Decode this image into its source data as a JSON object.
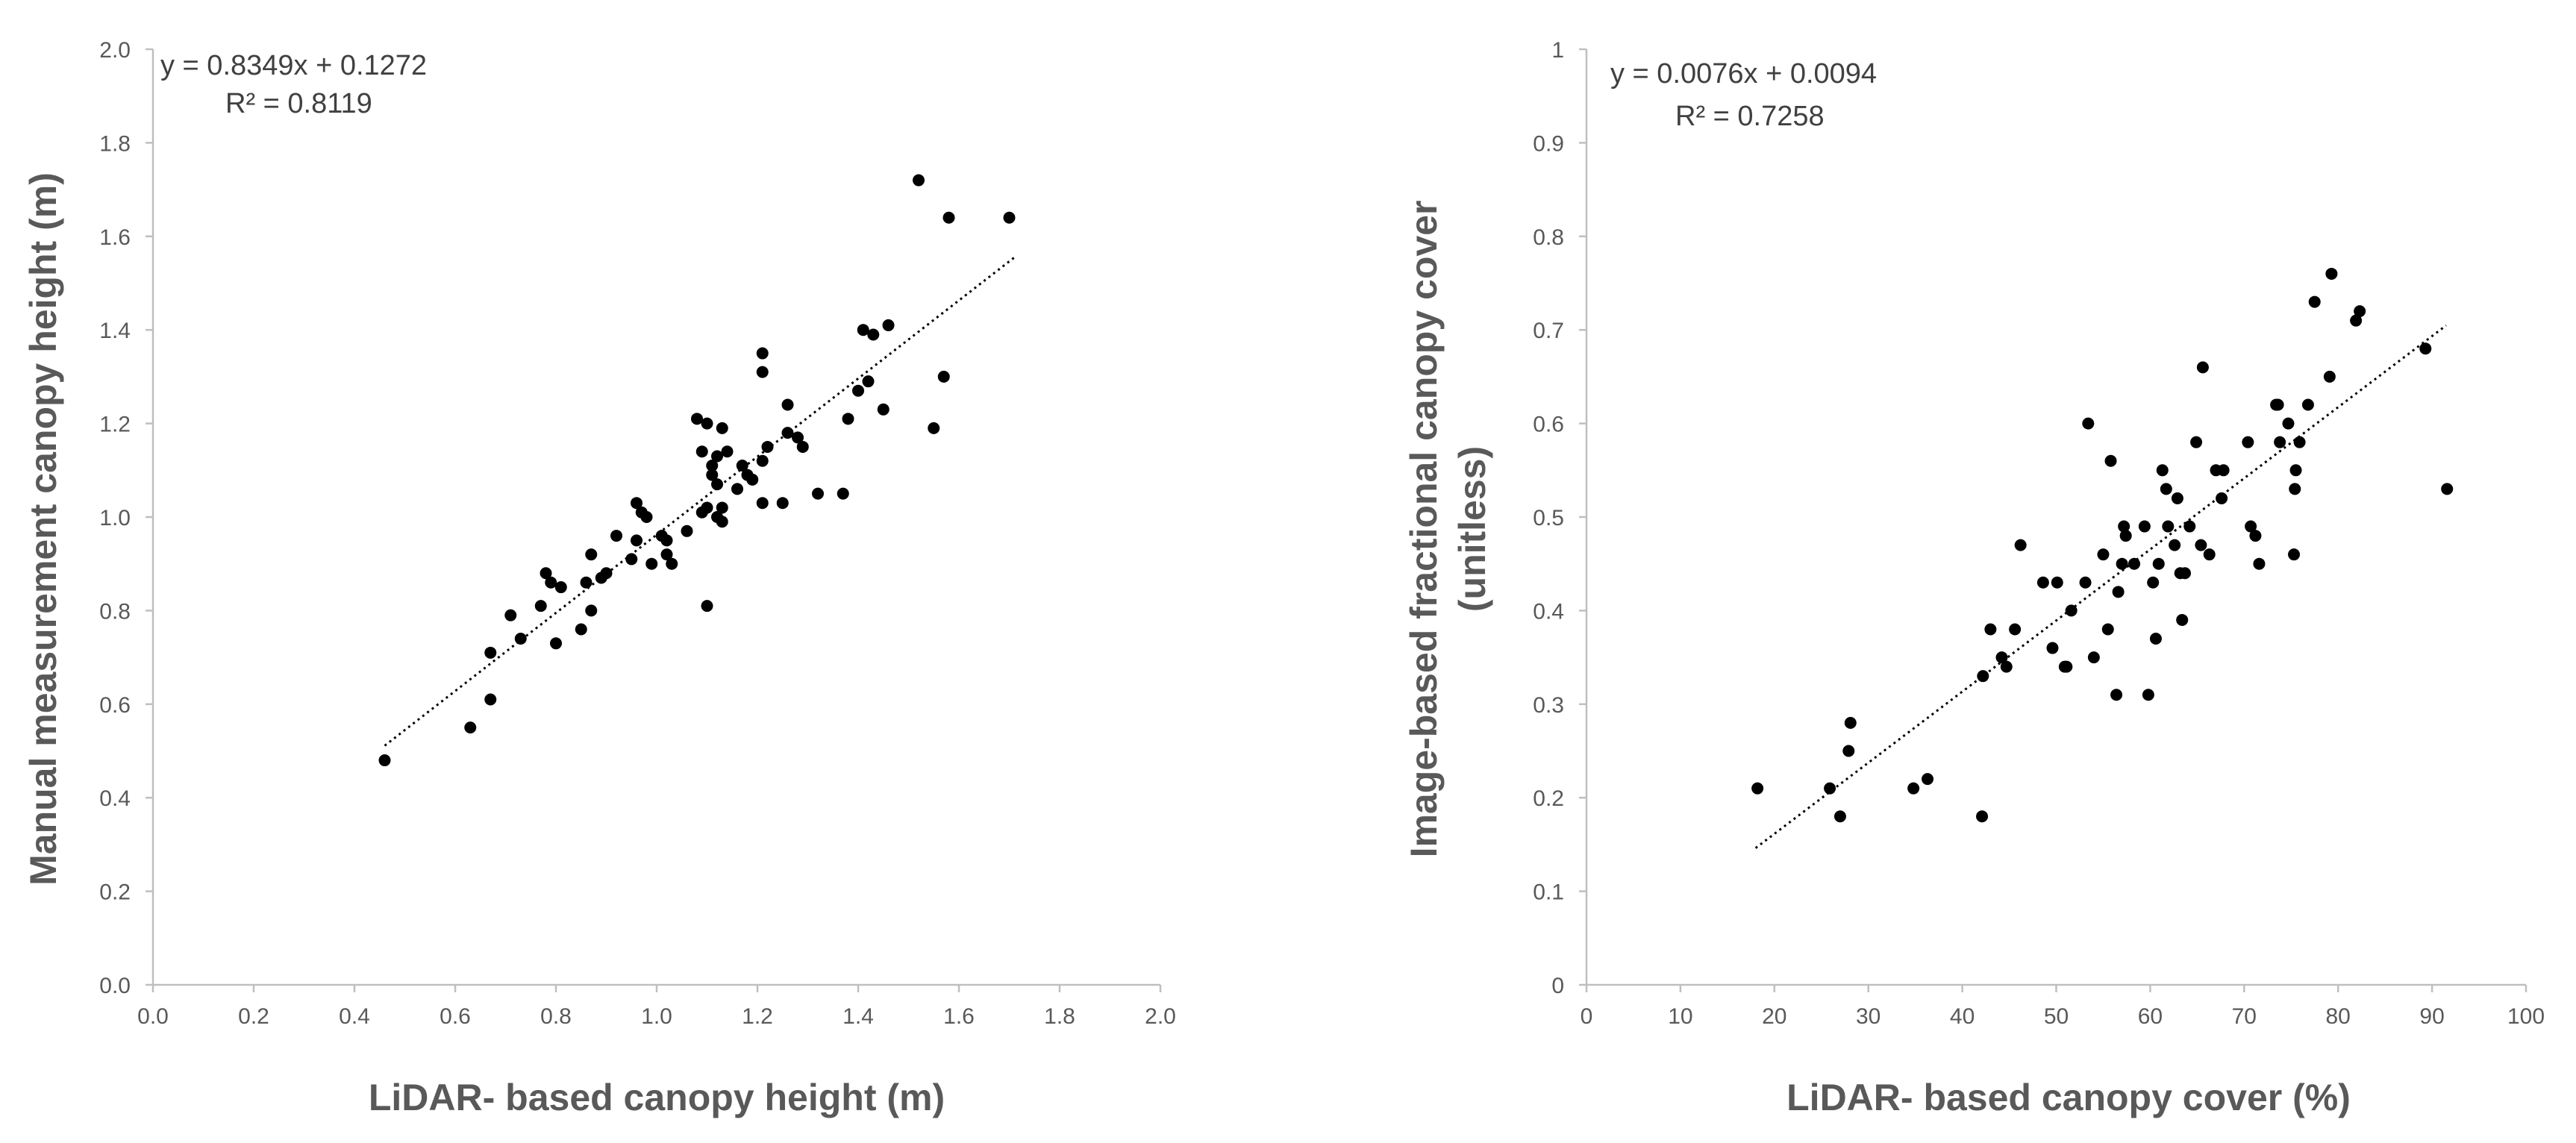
{
  "chart_data": [
    {
      "type": "scatter",
      "title": "",
      "xlabel": "LiDAR- based canopy height (m)",
      "ylabel": "Manual measurement canopy height (m)",
      "xlim": [
        0,
        2
      ],
      "ylim": [
        0,
        2
      ],
      "x_ticks": [
        "0.0",
        "0.2",
        "0.4",
        "0.6",
        "0.8",
        "1.0",
        "1.2",
        "1.4",
        "1.6",
        "1.8",
        "2.0"
      ],
      "y_ticks": [
        "0.0",
        "0.2",
        "0.4",
        "0.6",
        "0.8",
        "1.0",
        "1.2",
        "1.4",
        "1.6",
        "1.8",
        "2.0"
      ],
      "x_tick_values": [
        0,
        0.2,
        0.4,
        0.6,
        0.8,
        1.0,
        1.2,
        1.4,
        1.6,
        1.8,
        2.0
      ],
      "y_tick_values": [
        0,
        0.2,
        0.4,
        0.6,
        0.8,
        1.0,
        1.2,
        1.4,
        1.6,
        1.8,
        2.0
      ],
      "equation": "y = 0.8349x + 0.1272",
      "r2": "R² = 0.8119",
      "trendline": {
        "slope": 0.8349,
        "intercept": 0.1272,
        "x_range": [
          0.46,
          1.71
        ]
      },
      "points": [
        [
          0.46,
          0.48
        ],
        [
          0.63,
          0.55
        ],
        [
          0.67,
          0.61
        ],
        [
          0.67,
          0.71
        ],
        [
          0.71,
          0.79
        ],
        [
          0.73,
          0.74
        ],
        [
          0.77,
          0.81
        ],
        [
          0.78,
          0.88
        ],
        [
          0.79,
          0.86
        ],
        [
          0.8,
          0.73
        ],
        [
          0.81,
          0.85
        ],
        [
          0.85,
          0.76
        ],
        [
          0.86,
          0.86
        ],
        [
          0.87,
          0.92
        ],
        [
          0.87,
          0.8
        ],
        [
          0.89,
          0.87
        ],
        [
          0.9,
          0.88
        ],
        [
          0.92,
          0.96
        ],
        [
          0.95,
          0.91
        ],
        [
          0.96,
          0.95
        ],
        [
          0.96,
          1.03
        ],
        [
          0.97,
          1.01
        ],
        [
          0.98,
          1.0
        ],
        [
          0.99,
          0.9
        ],
        [
          1.01,
          0.96
        ],
        [
          1.02,
          0.95
        ],
        [
          1.02,
          0.92
        ],
        [
          1.03,
          0.9
        ],
        [
          1.06,
          0.97
        ],
        [
          1.08,
          1.21
        ],
        [
          1.09,
          1.01
        ],
        [
          1.09,
          1.14
        ],
        [
          1.1,
          1.2
        ],
        [
          1.1,
          1.02
        ],
        [
          1.1,
          0.81
        ],
        [
          1.11,
          1.09
        ],
        [
          1.11,
          1.11
        ],
        [
          1.12,
          1.07
        ],
        [
          1.12,
          1.13
        ],
        [
          1.12,
          1.0
        ],
        [
          1.13,
          0.99
        ],
        [
          1.13,
          1.02
        ],
        [
          1.13,
          1.19
        ],
        [
          1.14,
          1.14
        ],
        [
          1.16,
          1.06
        ],
        [
          1.17,
          1.11
        ],
        [
          1.18,
          1.09
        ],
        [
          1.19,
          1.08
        ],
        [
          1.21,
          1.31
        ],
        [
          1.21,
          1.35
        ],
        [
          1.21,
          1.12
        ],
        [
          1.21,
          1.03
        ],
        [
          1.22,
          1.15
        ],
        [
          1.25,
          1.03
        ],
        [
          1.26,
          1.18
        ],
        [
          1.26,
          1.24
        ],
        [
          1.28,
          1.17
        ],
        [
          1.29,
          1.15
        ],
        [
          1.32,
          1.05
        ],
        [
          1.37,
          1.05
        ],
        [
          1.38,
          1.21
        ],
        [
          1.4,
          1.27
        ],
        [
          1.41,
          1.4
        ],
        [
          1.42,
          1.29
        ],
        [
          1.43,
          1.39
        ],
        [
          1.45,
          1.23
        ],
        [
          1.46,
          1.41
        ],
        [
          1.52,
          1.72
        ],
        [
          1.55,
          1.19
        ],
        [
          1.57,
          1.3
        ],
        [
          1.58,
          1.64
        ],
        [
          1.7,
          1.64
        ]
      ]
    },
    {
      "type": "scatter",
      "title": "",
      "xlabel": "LiDAR- based canopy cover (%)",
      "ylabel_line1": "Image-based fractional canopy cover",
      "ylabel_line2": "(unitless)",
      "xlim": [
        0,
        100
      ],
      "ylim": [
        0,
        1
      ],
      "x_ticks": [
        "0",
        "10",
        "20",
        "30",
        "40",
        "50",
        "60",
        "70",
        "80",
        "90",
        "100"
      ],
      "y_ticks": [
        "0",
        "0.1",
        "0.2",
        "0.3",
        "0.4",
        "0.5",
        "0.6",
        "0.7",
        "0.8",
        "0.9",
        "1"
      ],
      "x_tick_values": [
        0,
        10,
        20,
        30,
        40,
        50,
        60,
        70,
        80,
        90,
        100
      ],
      "y_tick_values": [
        0,
        0.1,
        0.2,
        0.3,
        0.4,
        0.5,
        0.6,
        0.7,
        0.8,
        0.9,
        1.0
      ],
      "equation": "y = 0.0076x + 0.0094",
      "r2": "R² = 0.7258",
      "trendline": {
        "slope": 0.0076,
        "intercept": 0.0094,
        "x_range": [
          18,
          91.5
        ]
      },
      "points": [
        [
          18.2,
          0.21
        ],
        [
          25.9,
          0.21
        ],
        [
          27.0,
          0.18
        ],
        [
          27.9,
          0.25
        ],
        [
          28.1,
          0.28
        ],
        [
          34.8,
          0.21
        ],
        [
          36.3,
          0.22
        ],
        [
          42.1,
          0.18
        ],
        [
          42.2,
          0.33
        ],
        [
          43.0,
          0.38
        ],
        [
          44.2,
          0.35
        ],
        [
          44.7,
          0.34
        ],
        [
          45.6,
          0.38
        ],
        [
          46.2,
          0.47
        ],
        [
          48.6,
          0.43
        ],
        [
          49.6,
          0.36
        ],
        [
          50.1,
          0.43
        ],
        [
          50.9,
          0.34
        ],
        [
          51.1,
          0.34
        ],
        [
          51.6,
          0.4
        ],
        [
          53.1,
          0.43
        ],
        [
          53.4,
          0.6
        ],
        [
          54.0,
          0.35
        ],
        [
          55.0,
          0.46
        ],
        [
          55.5,
          0.38
        ],
        [
          55.8,
          0.56
        ],
        [
          56.4,
          0.31
        ],
        [
          56.6,
          0.42
        ],
        [
          57.0,
          0.45
        ],
        [
          57.2,
          0.49
        ],
        [
          57.4,
          0.48
        ],
        [
          58.3,
          0.45
        ],
        [
          59.4,
          0.49
        ],
        [
          59.8,
          0.31
        ],
        [
          60.3,
          0.43
        ],
        [
          60.6,
          0.37
        ],
        [
          60.9,
          0.45
        ],
        [
          61.3,
          0.55
        ],
        [
          61.7,
          0.53
        ],
        [
          61.9,
          0.49
        ],
        [
          62.6,
          0.47
        ],
        [
          62.9,
          0.52
        ],
        [
          63.2,
          0.44
        ],
        [
          63.4,
          0.39
        ],
        [
          63.7,
          0.44
        ],
        [
          64.2,
          0.49
        ],
        [
          64.9,
          0.58
        ],
        [
          65.4,
          0.47
        ],
        [
          65.6,
          0.66
        ],
        [
          66.3,
          0.46
        ],
        [
          67.0,
          0.55
        ],
        [
          67.6,
          0.52
        ],
        [
          67.8,
          0.55
        ],
        [
          70.4,
          0.58
        ],
        [
          70.7,
          0.49
        ],
        [
          71.2,
          0.48
        ],
        [
          71.6,
          0.45
        ],
        [
          73.4,
          0.62
        ],
        [
          73.6,
          0.62
        ],
        [
          73.8,
          0.58
        ],
        [
          74.7,
          0.6
        ],
        [
          75.3,
          0.46
        ],
        [
          75.4,
          0.53
        ],
        [
          75.5,
          0.55
        ],
        [
          75.9,
          0.58
        ],
        [
          76.8,
          0.62
        ],
        [
          77.5,
          0.73
        ],
        [
          79.1,
          0.65
        ],
        [
          79.3,
          0.76
        ],
        [
          81.9,
          0.71
        ],
        [
          82.3,
          0.72
        ],
        [
          89.3,
          0.68
        ],
        [
          91.6,
          0.53
        ]
      ]
    }
  ]
}
